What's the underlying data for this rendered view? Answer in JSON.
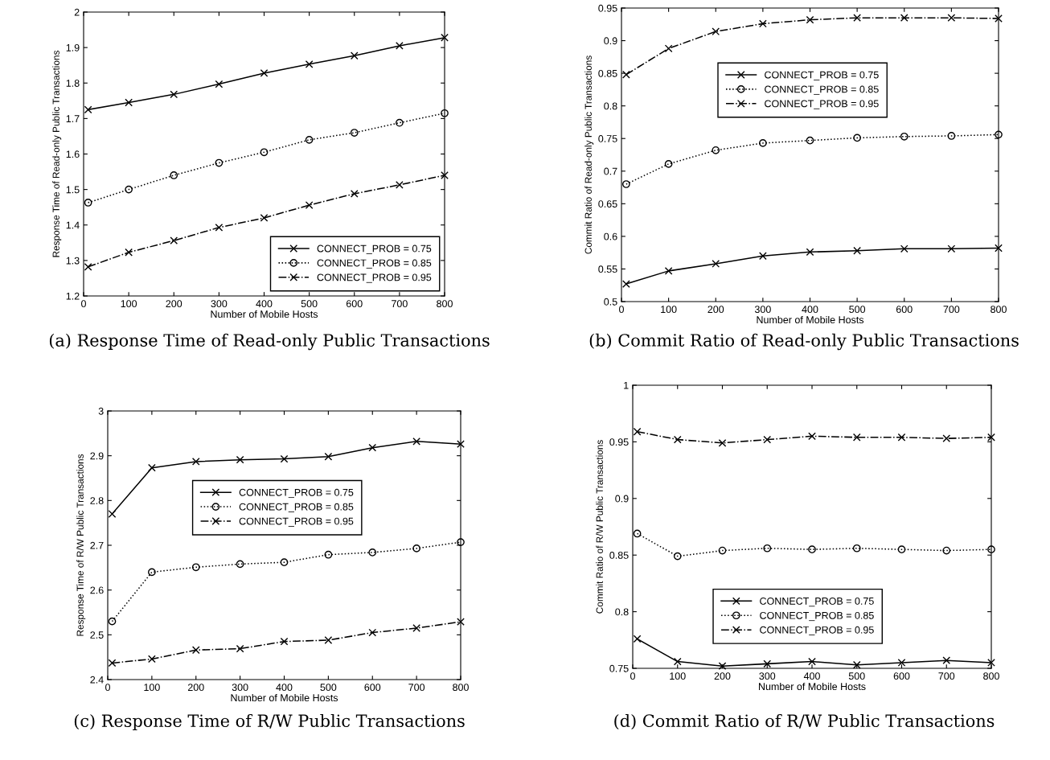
{
  "chart_data": [
    {
      "type": "line",
      "title": "(a) Response Time of Read-only Public Transactions",
      "xlabel": "Number of Mobile Hosts",
      "ylabel": "Response Time of Read-only Public Transactions",
      "x": [
        10,
        100,
        200,
        300,
        400,
        500,
        600,
        700,
        800
      ],
      "xlim": [
        0,
        800
      ],
      "xticks": [
        0,
        100,
        200,
        300,
        400,
        500,
        600,
        700,
        800
      ],
      "ylim": [
        1.2,
        2
      ],
      "yticks": [
        1.2,
        1.3,
        1.4,
        1.5,
        1.6,
        1.7,
        1.8,
        1.9,
        2
      ],
      "legend": "bottom right",
      "grid": false,
      "series": [
        {
          "name": "CONNECT_PROB = 0.75",
          "color": "#000000",
          "marker": "cross",
          "line_style": "solid",
          "values": [
            1.725,
            1.745,
            1.768,
            1.797,
            1.828,
            1.853,
            1.877,
            1.905,
            1.928
          ]
        },
        {
          "name": "CONNECT_PROB = 0.85",
          "color": "#000000",
          "marker": "circle",
          "line_style": "dotted",
          "values": [
            1.463,
            1.5,
            1.54,
            1.575,
            1.605,
            1.64,
            1.66,
            1.688,
            1.715
          ]
        },
        {
          "name": "CONNECT_PROB = 0.95",
          "color": "#000000",
          "marker": "cross",
          "line_style": "dashdot",
          "values": [
            1.282,
            1.323,
            1.356,
            1.393,
            1.42,
            1.456,
            1.488,
            1.513,
            1.54
          ]
        }
      ]
    },
    {
      "type": "line",
      "title": "(b) Commit Ratio of Read-only Public Transactions",
      "xlabel": "Number of Mobile Hosts",
      "ylabel": "Commit Ratio of Read-only Public Transactions",
      "x": [
        10,
        100,
        200,
        300,
        400,
        500,
        600,
        700,
        800
      ],
      "xlim": [
        0,
        800
      ],
      "xticks": [
        0,
        100,
        200,
        300,
        400,
        500,
        600,
        700,
        800
      ],
      "ylim": [
        0.5,
        0.95
      ],
      "yticks": [
        0.5,
        0.55,
        0.6,
        0.65,
        0.7,
        0.75,
        0.8,
        0.85,
        0.9,
        0.95
      ],
      "legend": "top",
      "grid": false,
      "series": [
        {
          "name": "CONNECT_PROB = 0.75",
          "color": "#000000",
          "marker": "cross",
          "line_style": "solid",
          "values": [
            0.527,
            0.547,
            0.558,
            0.57,
            0.576,
            0.578,
            0.581,
            0.581,
            0.582
          ]
        },
        {
          "name": "CONNECT_PROB = 0.85",
          "color": "#000000",
          "marker": "circle",
          "line_style": "dotted",
          "values": [
            0.68,
            0.711,
            0.732,
            0.743,
            0.747,
            0.751,
            0.753,
            0.754,
            0.756
          ]
        },
        {
          "name": "CONNECT_PROB = 0.95",
          "color": "#000000",
          "marker": "cross",
          "line_style": "dashdot",
          "values": [
            0.848,
            0.888,
            0.914,
            0.926,
            0.932,
            0.935,
            0.935,
            0.935,
            0.934
          ]
        }
      ]
    },
    {
      "type": "line",
      "title": "(c) Response Time of R/W Public Transactions",
      "xlabel": "Number of Mobile Hosts",
      "ylabel": "Response Time of R/W Public Transactions",
      "x": [
        10,
        100,
        200,
        300,
        400,
        500,
        600,
        700,
        800
      ],
      "xlim": [
        0,
        800
      ],
      "xticks": [
        0,
        100,
        200,
        300,
        400,
        500,
        600,
        700,
        800
      ],
      "ylim": [
        2.4,
        3
      ],
      "yticks": [
        2.4,
        2.5,
        2.6,
        2.7,
        2.8,
        2.9,
        3
      ],
      "legend": "center",
      "grid": false,
      "series": [
        {
          "name": "CONNECT_PROB = 0.75",
          "color": "#000000",
          "marker": "cross",
          "line_style": "solid",
          "values": [
            2.77,
            2.873,
            2.887,
            2.891,
            2.893,
            2.898,
            2.918,
            2.932,
            2.926
          ]
        },
        {
          "name": "CONNECT_PROB = 0.85",
          "color": "#000000",
          "marker": "circle",
          "line_style": "dotted",
          "values": [
            2.53,
            2.64,
            2.651,
            2.658,
            2.662,
            2.679,
            2.684,
            2.693,
            2.707
          ]
        },
        {
          "name": "CONNECT_PROB = 0.95",
          "color": "#000000",
          "marker": "cross",
          "line_style": "dashdot",
          "values": [
            2.437,
            2.446,
            2.466,
            2.469,
            2.485,
            2.488,
            2.505,
            2.515,
            2.529
          ]
        }
      ]
    },
    {
      "type": "line",
      "title": "(d) Commit Ratio of R/W Public Transactions",
      "xlabel": "Number of Mobile Hosts",
      "ylabel": "Commit Ratio of R/W Public Transactions",
      "x": [
        10,
        100,
        200,
        300,
        400,
        500,
        600,
        700,
        800
      ],
      "xlim": [
        0,
        800
      ],
      "xticks": [
        0,
        100,
        200,
        300,
        400,
        500,
        600,
        700,
        800
      ],
      "ylim": [
        0.75,
        1
      ],
      "yticks": [
        0.75,
        0.8,
        0.85,
        0.9,
        0.95,
        1
      ],
      "legend": "bottom",
      "grid": false,
      "series": [
        {
          "name": "CONNECT_PROB = 0.75",
          "color": "#000000",
          "marker": "cross",
          "line_style": "solid",
          "values": [
            0.776,
            0.756,
            0.752,
            0.754,
            0.756,
            0.753,
            0.755,
            0.757,
            0.755
          ]
        },
        {
          "name": "CONNECT_PROB = 0.85",
          "color": "#000000",
          "marker": "circle",
          "line_style": "dotted",
          "values": [
            0.869,
            0.849,
            0.854,
            0.856,
            0.855,
            0.856,
            0.855,
            0.854,
            0.855
          ]
        },
        {
          "name": "CONNECT_PROB = 0.95",
          "color": "#000000",
          "marker": "cross",
          "line_style": "dashdot",
          "values": [
            0.959,
            0.952,
            0.949,
            0.952,
            0.955,
            0.954,
            0.954,
            0.953,
            0.954
          ]
        }
      ]
    }
  ]
}
